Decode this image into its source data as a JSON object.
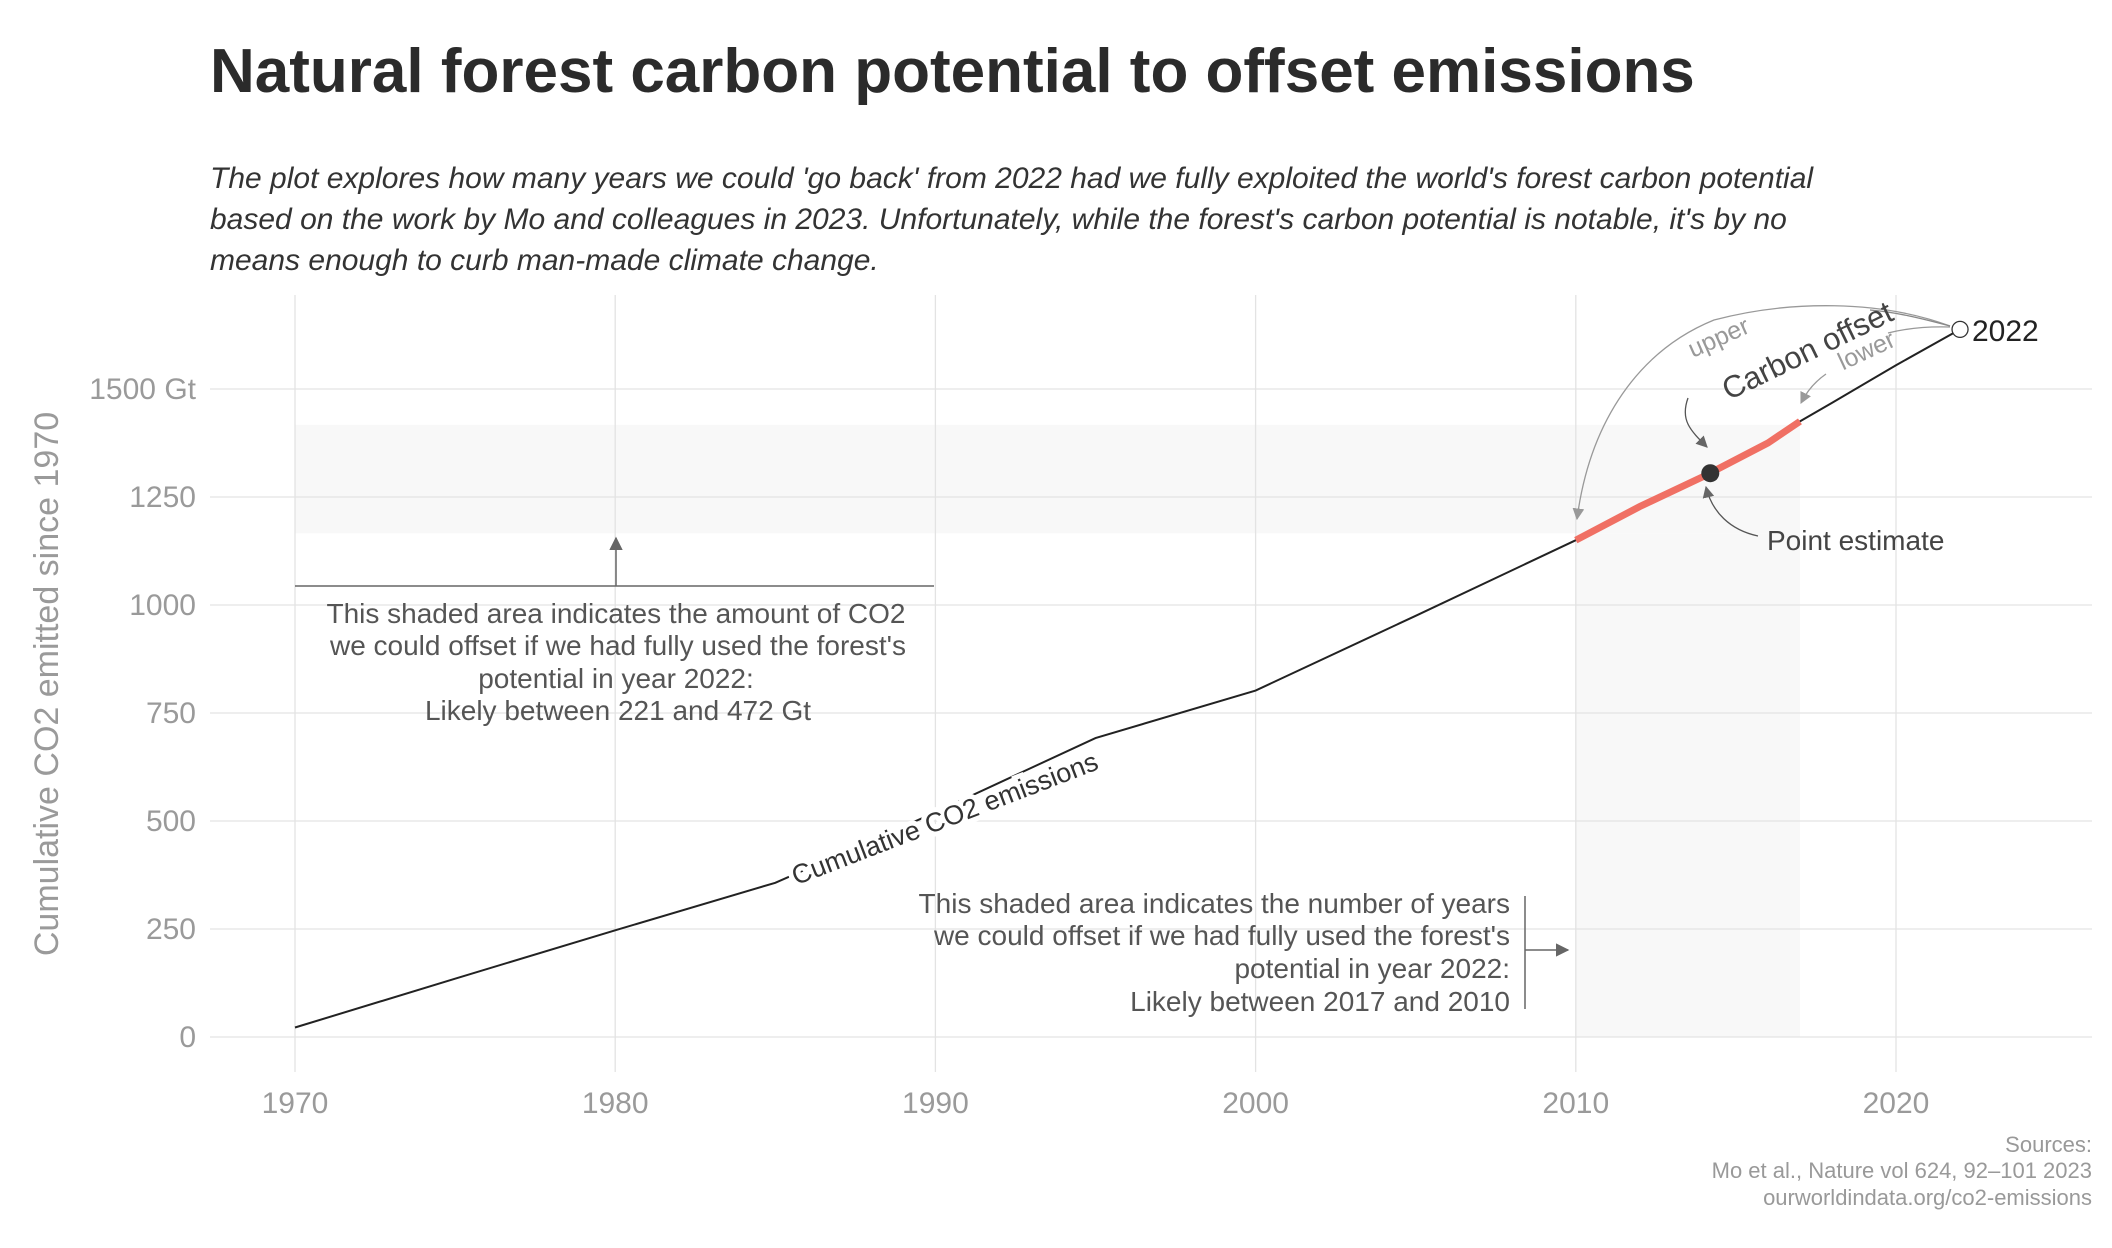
{
  "title": "Natural forest carbon potential to offset emissions",
  "subtitle": [
    "The plot explores how many years we could 'go back' from 2022 had we fully exploited the world's forest carbon potential",
    "based on the work by Mo and colleagues in 2023. Unfortunately, while the forest's carbon potential is notable, it's by no",
    "means enough to curb man-made climate change."
  ],
  "sources": [
    "Sources:",
    "Mo et al., Nature vol 624, 92–101 2023",
    "ourworldindata.org/co2-emissions"
  ],
  "chart_data": {
    "type": "line",
    "ylabel": "Cumulative CO2 emitted since 1970",
    "xlim": [
      1967.3,
      2026
    ],
    "ylim": [
      -40,
      1700
    ],
    "x_ticks": [
      "1970",
      "1980",
      "1990",
      "2000",
      "2010",
      "2020"
    ],
    "y_ticks": [
      "0",
      "250",
      "500",
      "750",
      "1000",
      "1250",
      "1500 Gt"
    ],
    "y_tick_values": [
      0,
      250,
      500,
      750,
      1000,
      1250,
      1500
    ],
    "grid": true,
    "series": [
      {
        "name": "Cumulative CO2 emissions",
        "x": [
          1970,
          1975,
          1980,
          1985,
          1990,
          1995,
          2000,
          2005,
          2010,
          2012,
          2014,
          2016,
          2017,
          2018,
          2020,
          2022
        ],
        "y": [
          22,
          135,
          247,
          357,
          520,
          692,
          802,
          975,
          1150,
          1228,
          1298,
          1375,
          1425,
          1468,
          1555,
          1638
        ],
        "color": "#222222"
      }
    ],
    "carbon_offset": {
      "label": "Carbon offset",
      "upper_label": "upper",
      "lower_label": "lower",
      "offset_gt_range": [
        221,
        472
      ],
      "year_range": [
        2010,
        2017
      ],
      "point_estimate": {
        "label": "Point estimate",
        "x": 2014.2,
        "y": 1305
      },
      "end_point": {
        "label": "2022",
        "x": 2022,
        "y": 1638
      },
      "color": "#f07064",
      "shade_color": "#f8f8f8"
    },
    "annotations": {
      "gt_note": [
        "This shaded area indicates the amount of CO2",
        "we could offset if we had fully used the forest's",
        "potential in year 2022:",
        "Likely between 221 and 472 Gt"
      ],
      "years_note": [
        "This shaded area indicates the number of years",
        "we could offset if we had fully used the forest's",
        "potential in year 2022:",
        "Likely between 2017 and 2010"
      ]
    }
  }
}
